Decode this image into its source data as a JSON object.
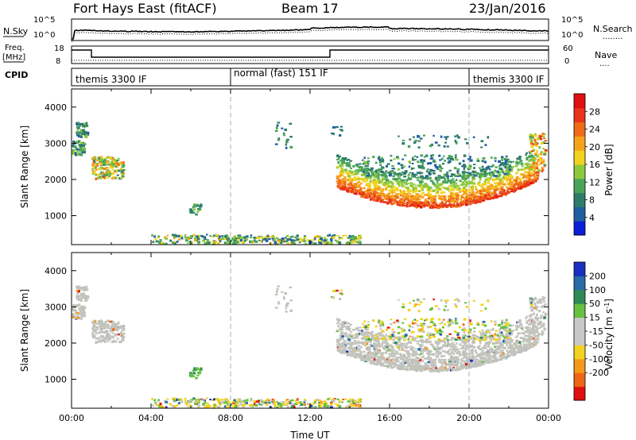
{
  "header": {
    "station": "Fort Hays East (fitACF)",
    "beam": "Beam 17",
    "date": "23/Jan/2016"
  },
  "strip_labels": {
    "nsky": "N.Sky",
    "nsearch": "N.Search",
    "nsearch_dots": "........",
    "freq_line1": "Freq.",
    "freq_line2": "[MHz]",
    "nave": "Nave",
    "nave_dots": "....",
    "cpid": "CPID"
  },
  "noise_panel": {
    "ytick_top": "10^5",
    "ytick_bottom": "10^0",
    "right_tick_top": "10^5",
    "right_tick_bottom": "10^0"
  },
  "freq_panel": {
    "left_ticks": [
      "18",
      "8"
    ],
    "right_ticks": [
      "60",
      "0"
    ]
  },
  "cpid_segments": [
    {
      "label": "themis 3300 IF",
      "start_h": 0
    },
    {
      "label": "normal (fast) 151 IF",
      "start_h": 8
    },
    {
      "label": "themis 3300 IF",
      "start_h": 20
    }
  ],
  "colors": {
    "power": [
      "#0a1fd6",
      "#1f5fa0",
      "#2e7d6a",
      "#4aa35a",
      "#8cc83c",
      "#f2d21e",
      "#f5a21b",
      "#f06a17",
      "#e8341a",
      "#e01010"
    ],
    "velocity": [
      "#1a2fbf",
      "#2a6aa8",
      "#2e8a55",
      "#66c140",
      "#c8c8c8",
      "#c8c8c8",
      "#f2d21e",
      "#f39a1a",
      "#ee6616",
      "#e01010"
    ],
    "grey_scatter": "#c3c3bd"
  },
  "chart_data": [
    {
      "type": "heatmap",
      "name": "power",
      "xlabel": "",
      "ylabel": "Slant Range [km]",
      "x_range_hours": [
        0,
        24
      ],
      "ylim": [
        200,
        4500
      ],
      "yticks": [
        "1000",
        "2000",
        "3000",
        "4000"
      ],
      "vlines_hours": [
        8,
        20
      ],
      "colorbar": {
        "label": "Power [dB]",
        "ticks": [
          "4",
          "8",
          "12",
          "16",
          "20",
          "24",
          "28"
        ],
        "range": [
          0,
          32
        ]
      }
    },
    {
      "type": "heatmap",
      "name": "velocity",
      "xlabel": "Time UT",
      "ylabel": "Slant Range [km]",
      "x_range_hours": [
        0,
        24
      ],
      "ylim": [
        200,
        4500
      ],
      "yticks": [
        "1000",
        "2000",
        "3000",
        "4000"
      ],
      "xticks": [
        "00:00",
        "04:00",
        "08:00",
        "12:00",
        "16:00",
        "20:00",
        "00:00"
      ],
      "vlines_hours": [
        8,
        20
      ],
      "colorbar": {
        "label": "Velocity [m s^-1]",
        "ticks": [
          "200",
          "100",
          "50",
          "15",
          "-15",
          "-50",
          "-100",
          "-200"
        ]
      }
    }
  ]
}
